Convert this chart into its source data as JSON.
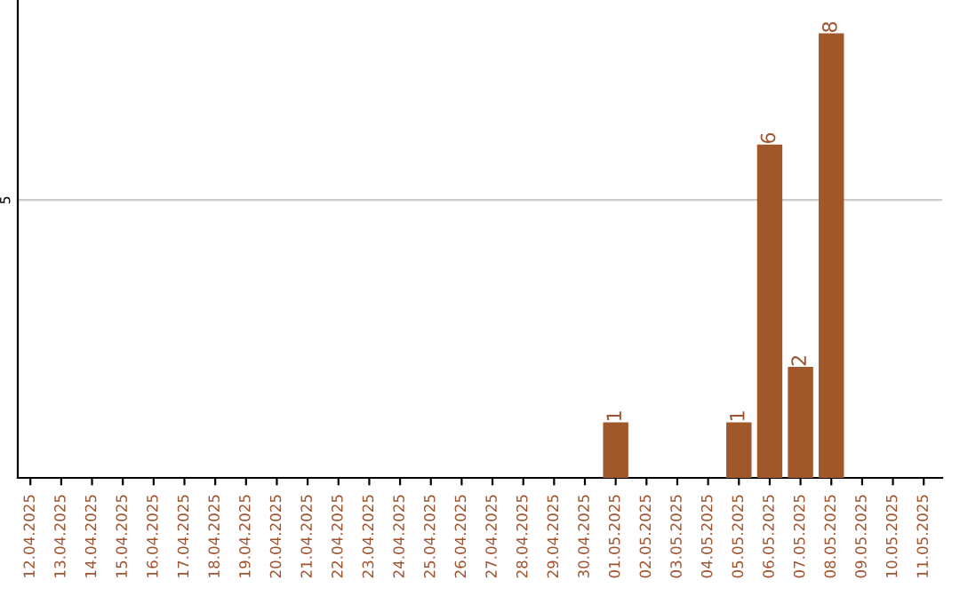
{
  "chart_data": {
    "type": "bar",
    "categories": [
      "12.04.2025",
      "13.04.2025",
      "14.04.2025",
      "15.04.2025",
      "16.04.2025",
      "17.04.2025",
      "18.04.2025",
      "19.04.2025",
      "20.04.2025",
      "21.04.2025",
      "22.04.2025",
      "23.04.2025",
      "24.04.2025",
      "25.04.2025",
      "26.04.2025",
      "27.04.2025",
      "28.04.2025",
      "29.04.2025",
      "30.04.2025",
      "01.05.2025",
      "02.05.2025",
      "03.05.2025",
      "04.05.2025",
      "05.05.2025",
      "06.05.2025",
      "07.05.2025",
      "08.05.2025",
      "09.05.2025",
      "10.05.2025",
      "11.05.2025"
    ],
    "values": [
      null,
      null,
      null,
      null,
      null,
      null,
      null,
      null,
      null,
      null,
      null,
      null,
      null,
      null,
      null,
      null,
      null,
      null,
      null,
      1,
      null,
      null,
      null,
      1,
      6,
      2,
      8,
      null,
      null,
      null
    ],
    "data_labels": true,
    "color": "#a0582a",
    "ylim": [
      0,
      8.6
    ],
    "yticks": [
      {
        "value": 0,
        "label": null
      },
      5
    ],
    "grid": "y"
  }
}
